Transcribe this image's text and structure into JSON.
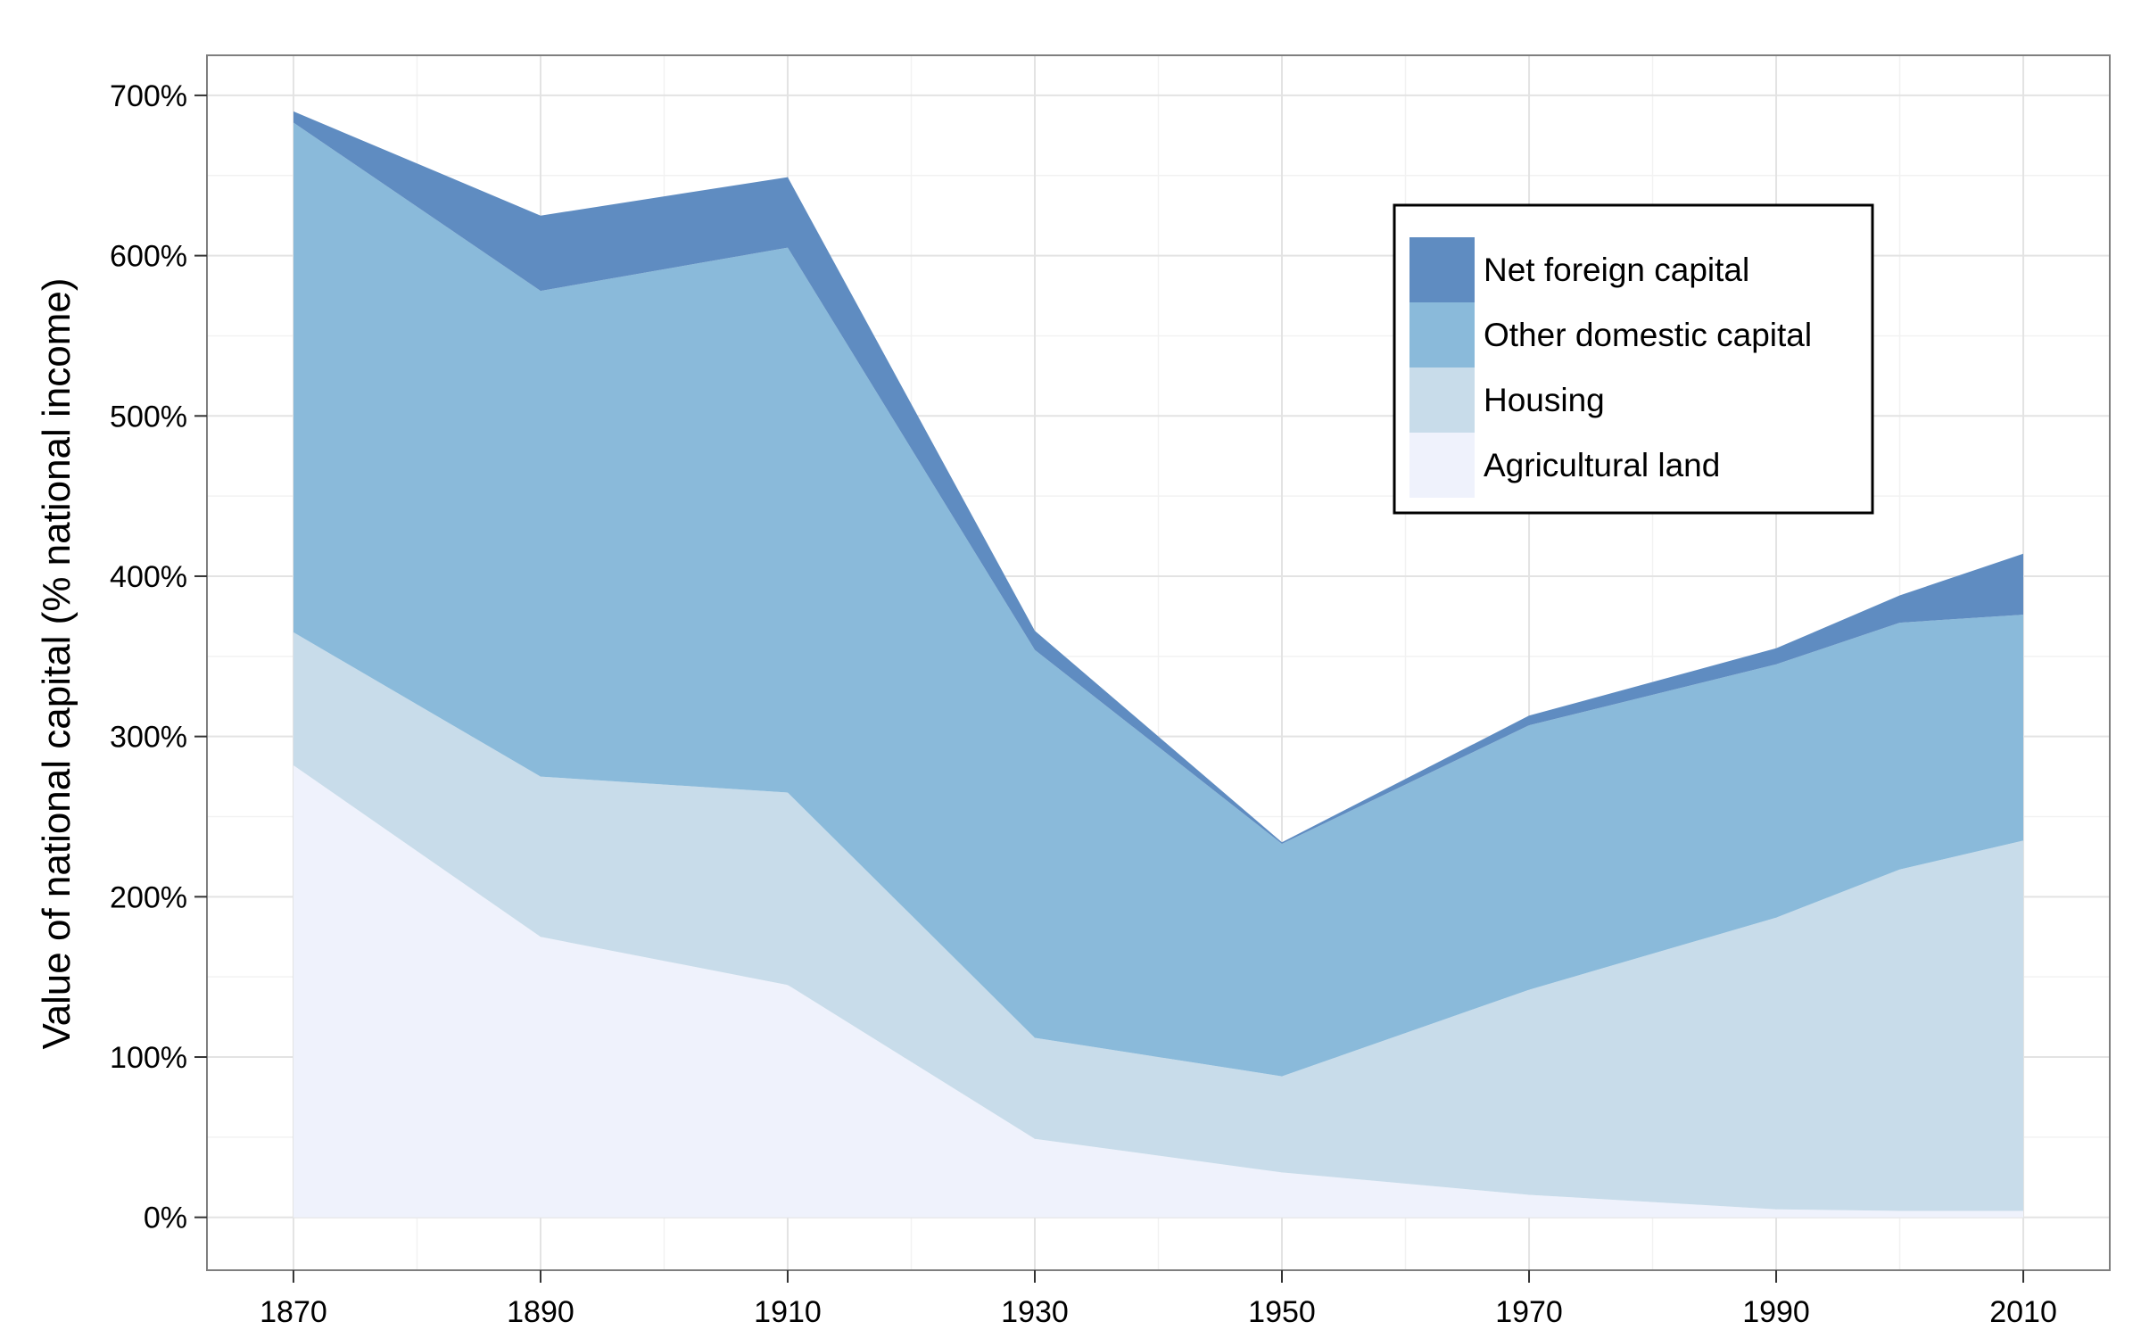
{
  "chart_data": {
    "type": "area",
    "stacked": true,
    "x": [
      1870,
      1890,
      1910,
      1930,
      1950,
      1970,
      1990,
      2000,
      2010
    ],
    "series": [
      {
        "name": "Agricultural land",
        "color": "#eff2fc",
        "values": [
          282,
          175,
          145,
          49,
          28,
          14,
          5,
          4,
          4
        ]
      },
      {
        "name": "Housing",
        "color": "#c8dcea",
        "values": [
          83,
          100,
          120,
          63,
          60,
          128,
          182,
          213,
          231
        ]
      },
      {
        "name": "Other domestic capital",
        "color": "#8abada",
        "values": [
          318,
          303,
          340,
          242,
          145,
          165,
          158,
          154,
          141
        ]
      },
      {
        "name": "Net foreign capital",
        "color": "#5f8cc1",
        "values": [
          7,
          47,
          44,
          12,
          1,
          6,
          10,
          17,
          38
        ]
      }
    ],
    "legend_order": [
      "Net foreign capital",
      "Other domestic capital",
      "Housing",
      "Agricultural land"
    ],
    "legend_position": "top-right",
    "xticks": [
      "1870",
      "1890",
      "1910",
      "1930",
      "1950",
      "1970",
      "1990",
      "2010"
    ],
    "yticks": [
      "0%",
      "100%",
      "200%",
      "300%",
      "400%",
      "500%",
      "600%",
      "700%"
    ],
    "xlabel": "",
    "ylabel": "Value of national capital (% national income)",
    "xlim": [
      1863,
      2017
    ],
    "ylim": [
      -33,
      725
    ],
    "grid": true
  }
}
